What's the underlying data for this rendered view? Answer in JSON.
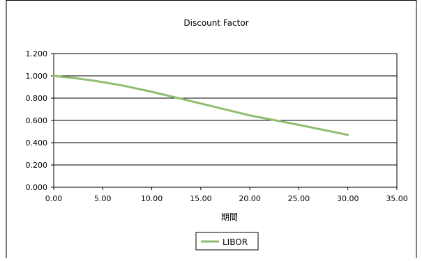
{
  "chart_data": {
    "type": "line",
    "title": "Discount Factor",
    "xlabel": "期間",
    "ylabel": "",
    "xlim": [
      0,
      35
    ],
    "ylim": [
      0,
      1.2
    ],
    "x_ticks": [
      "0.00",
      "5.00",
      "10.00",
      "15.00",
      "20.00",
      "25.00",
      "30.00",
      "35.00"
    ],
    "y_ticks": [
      "0.000",
      "0.200",
      "0.400",
      "0.600",
      "0.800",
      "1.000",
      "1.200"
    ],
    "grid": "horizontal",
    "legend_position": "bottom",
    "series": [
      {
        "name": "LIBOR",
        "color": "#8fbc6e",
        "x": [
          0,
          1,
          2,
          3,
          4,
          5,
          7,
          10,
          12,
          15,
          20,
          25,
          30
        ],
        "y": [
          1.0,
          0.99,
          0.982,
          0.97,
          0.958,
          0.944,
          0.914,
          0.857,
          0.815,
          0.752,
          0.645,
          0.56,
          0.47
        ]
      }
    ]
  }
}
